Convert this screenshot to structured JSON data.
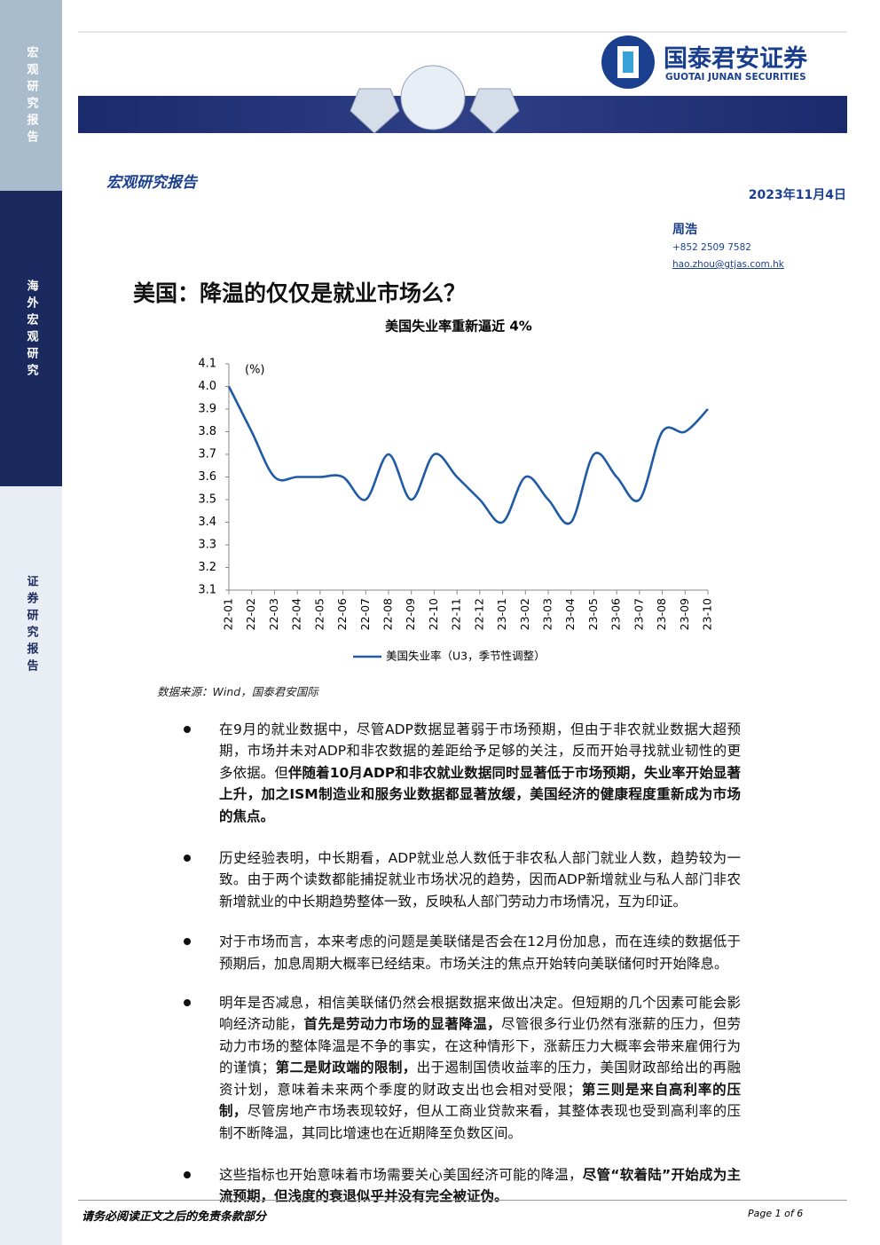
{
  "sidebar": {
    "top": "宏观研究报告",
    "middle": "海外宏观研究",
    "bottom": "证券研究报告"
  },
  "header": {
    "logo_name": "国泰君安证券",
    "logo_english": "GUOTAI JUNAN SECURITIES",
    "section": "宏观研究报告",
    "date": "2023年11月4日",
    "author": "周浩",
    "phone": "+852 2509 7582",
    "email": "hao.zhou@gtjas.com.hk"
  },
  "title": "美国：降温的仅仅是就业市场么？",
  "chart_data": {
    "type": "line",
    "title": "美国失业率重新逼近 4%",
    "y_unit": "(%)",
    "categories": [
      "22-01",
      "22-02",
      "22-03",
      "22-04",
      "22-05",
      "22-06",
      "22-07",
      "22-08",
      "22-09",
      "22-10",
      "22-11",
      "22-12",
      "23-01",
      "23-02",
      "23-03",
      "23-04",
      "23-05",
      "23-06",
      "23-07",
      "23-08",
      "23-09",
      "23-10"
    ],
    "series": [
      {
        "name": "美国失业率（U3，季节性调整）",
        "color": "#1f5aa6",
        "values": [
          4.0,
          3.8,
          3.6,
          3.6,
          3.6,
          3.6,
          3.5,
          3.7,
          3.5,
          3.7,
          3.6,
          3.5,
          3.4,
          3.6,
          3.5,
          3.4,
          3.7,
          3.6,
          3.5,
          3.8,
          3.8,
          3.9
        ]
      }
    ],
    "ylim": [
      3.1,
      4.1
    ],
    "yticks": [
      3.1,
      3.2,
      3.3,
      3.4,
      3.5,
      3.6,
      3.7,
      3.8,
      3.9,
      {
        "value": 4,
        "label": "4.0"
      },
      4.1
    ],
    "grid": false,
    "legend": "bottom"
  },
  "source": "数据来源：Wind，国泰君安国际",
  "body": {
    "paragraphs": [
      {
        "runs": [
          {
            "text": "在9月的就业数据中，尽管ADP数据显著弱于市场预期，但由于非农就业数据大超预期，市场并未对ADP和非农数据的差距给予足够的关注，反而开始寻找就业韧性的更多依据。但"
          },
          {
            "text": "伴随着10月ADP和非农就业数据同时显著低于市场预期，失业率开始显著上升，加之ISM制造业和服务业数据都显著放缓，美国经济的健康程度重新成为市场的焦点。",
            "bold": true
          }
        ]
      },
      {
        "runs": [
          {
            "text": "历史经验表明，中长期看，ADP就业总人数低于非农私人部门就业人数，趋势较为一致。由于两个读数都能捕捉就业市场状况的趋势，因而ADP新增就业与私人部门非农新增就业的中长期趋势整体一致，反映私人部门劳动力市场情况，互为印证。"
          }
        ]
      },
      {
        "runs": [
          {
            "text": "对于市场而言，本来考虑的问题是美联储是否会在12月份加息，而在连续的数据低于预期后，加息周期大概率已经结束。市场关注的焦点开始转向美联储何时开始降息。"
          }
        ]
      },
      {
        "runs": [
          {
            "text": "明年是否减息，相信美联储仍然会根据数据来做出决定。但短期的几个因素可能会影响经济动能，"
          },
          {
            "text": "首先是劳动力市场的显著降温，",
            "bold": true
          },
          {
            "text": "尽管很多行业仍然有涨薪的压力，但劳动力市场的整体降温是不争的事实，在这种情形下，涨薪压力大概率会带来雇佣行为的谨慎；"
          },
          {
            "text": "第二是财政端的限制，",
            "bold": true
          },
          {
            "text": "出于遏制国债收益率的压力，美国财政部给出的再融资计划，意味着未来两个季度的财政支出也会相对受限；"
          },
          {
            "text": "第三则是来自高利率的压制，",
            "bold": true
          },
          {
            "text": "尽管房地产市场表现较好，但从工商业贷款来看，其整体表现也受到高利率的压制不断降温，其同比增速也在近期降至负数区间。"
          }
        ]
      },
      {
        "runs": [
          {
            "text": "这些指标也开始意味着市场需要关心美国经济可能的降温，"
          },
          {
            "text": "尽管“软着陆”开始成为主流预期，但浅度的衰退似乎并没有完全被证伪。",
            "bold": true
          }
        ]
      }
    ]
  },
  "footer": {
    "disclaimer": "请务必阅读正文之后的免责条款部分",
    "page": "Page 1 of 6"
  }
}
